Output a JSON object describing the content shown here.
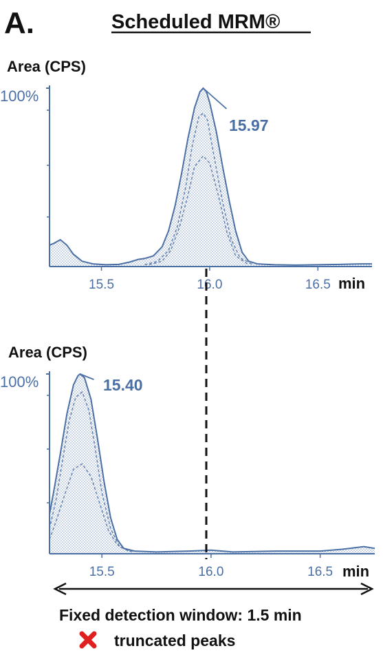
{
  "panel_letter": "A.",
  "title": "Scheduled MRM®",
  "colors": {
    "trace": "#4a6fa5",
    "text": "#111111",
    "marker": "#e02020"
  },
  "chart_data": [
    {
      "type": "line",
      "ylabel": "Area (CPS)",
      "y_top_label": "100%",
      "x_unit": "min",
      "xlim": [
        15.26,
        16.75
      ],
      "ylim": [
        0,
        100
      ],
      "ticks": [
        "15.5",
        "16.0",
        "16.5"
      ],
      "peak_label": "15.97",
      "peak_rt": 15.97,
      "series": [
        {
          "values": [
            [
              15.26,
              12
            ],
            [
              15.28,
              13
            ],
            [
              15.31,
              15
            ],
            [
              15.34,
              12
            ],
            [
              15.37,
              7
            ],
            [
              15.41,
              3
            ],
            [
              15.46,
              1.5
            ],
            [
              15.52,
              1
            ],
            [
              15.58,
              1.2
            ],
            [
              15.63,
              2.5
            ],
            [
              15.67,
              4
            ],
            [
              15.7,
              4.5
            ],
            [
              15.74,
              6
            ],
            [
              15.78,
              11
            ],
            [
              15.81,
              20
            ],
            [
              15.84,
              34
            ],
            [
              15.87,
              52
            ],
            [
              15.9,
              72
            ],
            [
              15.93,
              89
            ],
            [
              15.955,
              98
            ],
            [
              15.97,
              100
            ],
            [
              15.985,
              98
            ],
            [
              16.0,
              92
            ],
            [
              16.03,
              76
            ],
            [
              16.06,
              56
            ],
            [
              16.09,
              37
            ],
            [
              16.12,
              20
            ],
            [
              16.15,
              8
            ],
            [
              16.18,
              3
            ],
            [
              16.22,
              1.5
            ],
            [
              16.3,
              1
            ],
            [
              16.4,
              0.8
            ],
            [
              16.5,
              1
            ],
            [
              16.6,
              1.2
            ],
            [
              16.7,
              1.5
            ],
            [
              16.75,
              1.5
            ]
          ]
        },
        {
          "values": [
            [
              15.7,
              1
            ],
            [
              15.76,
              3
            ],
            [
              15.81,
              9
            ],
            [
              15.85,
              22
            ],
            [
              15.89,
              45
            ],
            [
              15.92,
              68
            ],
            [
              15.95,
              84
            ],
            [
              15.97,
              86
            ],
            [
              15.99,
              82
            ],
            [
              16.02,
              62
            ],
            [
              16.06,
              36
            ],
            [
              16.1,
              15
            ],
            [
              16.14,
              5
            ],
            [
              16.2,
              1
            ]
          ]
        },
        {
          "values": [
            [
              15.72,
              1
            ],
            [
              15.78,
              3
            ],
            [
              15.82,
              9
            ],
            [
              15.86,
              22
            ],
            [
              15.9,
              40
            ],
            [
              15.93,
              56
            ],
            [
              15.97,
              62
            ],
            [
              16.0,
              58
            ],
            [
              16.04,
              40
            ],
            [
              16.08,
              19
            ],
            [
              16.12,
              6
            ],
            [
              16.18,
              1
            ]
          ]
        }
      ]
    },
    {
      "type": "line",
      "ylabel": "Area (CPS)",
      "y_top_label": "100%",
      "x_unit": "min",
      "xlim": [
        15.26,
        16.75
      ],
      "ylim": [
        0,
        100
      ],
      "ticks": [
        "15.5",
        "16.0",
        "16.5"
      ],
      "peak_label": "15.40",
      "peak_rt": 15.4,
      "series": [
        {
          "values": [
            [
              15.26,
              22
            ],
            [
              15.28,
              35
            ],
            [
              15.31,
              56
            ],
            [
              15.34,
              78
            ],
            [
              15.37,
              94
            ],
            [
              15.39,
              99
            ],
            [
              15.4,
              100
            ],
            [
              15.42,
              98
            ],
            [
              15.45,
              86
            ],
            [
              15.48,
              64
            ],
            [
              15.51,
              40
            ],
            [
              15.54,
              20
            ],
            [
              15.57,
              8
            ],
            [
              15.6,
              3
            ],
            [
              15.65,
              1.5
            ],
            [
              15.75,
              1
            ],
            [
              15.9,
              1.5
            ],
            [
              16.0,
              2
            ],
            [
              16.1,
              1
            ],
            [
              16.3,
              1.5
            ],
            [
              16.5,
              1.5
            ],
            [
              16.6,
              2.5
            ],
            [
              16.7,
              4
            ],
            [
              16.75,
              3
            ]
          ]
        },
        {
          "values": [
            [
              15.26,
              14
            ],
            [
              15.29,
              30
            ],
            [
              15.32,
              52
            ],
            [
              15.35,
              74
            ],
            [
              15.38,
              87
            ],
            [
              15.41,
              90
            ],
            [
              15.44,
              80
            ],
            [
              15.47,
              58
            ],
            [
              15.5,
              34
            ],
            [
              15.54,
              14
            ],
            [
              15.58,
              4
            ],
            [
              15.64,
              1
            ]
          ]
        },
        {
          "values": [
            [
              15.26,
              8
            ],
            [
              15.29,
              18
            ],
            [
              15.33,
              33
            ],
            [
              15.37,
              47
            ],
            [
              15.41,
              50
            ],
            [
              15.45,
              43
            ],
            [
              15.49,
              28
            ],
            [
              15.53,
              13
            ],
            [
              15.57,
              5
            ],
            [
              15.63,
              1
            ]
          ]
        }
      ]
    }
  ],
  "window_text": "Fixed detection window: 1.5 min",
  "legend_text": "truncated peaks",
  "legend_icon": "cross-icon"
}
